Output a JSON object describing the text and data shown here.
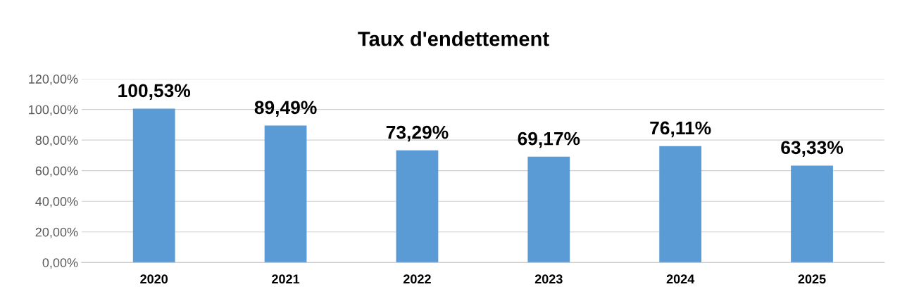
{
  "chart_data": {
    "type": "bar",
    "title": "Taux d'endettement",
    "categories": [
      "2020",
      "2021",
      "2022",
      "2023",
      "2024",
      "2025"
    ],
    "values": [
      100.53,
      89.49,
      73.29,
      69.17,
      76.11,
      63.33
    ],
    "value_labels": [
      "100,53%",
      "89,49%",
      "73,29%",
      "69,17%",
      "76,11%",
      "63,33%"
    ],
    "color": "#5b9bd5",
    "ylim": [
      0,
      120
    ],
    "yticks": [
      {
        "value": 0,
        "label": "0,00%"
      },
      {
        "value": 20,
        "label": "20,00%"
      },
      {
        "value": 40,
        "label": "40,00%"
      },
      {
        "value": 60,
        "label": "60,00%"
      },
      {
        "value": 80,
        "label": "80,00%"
      },
      {
        "value": 100,
        "label": "100,00%"
      },
      {
        "value": 120,
        "label": "120,00%"
      }
    ],
    "grid": "y"
  }
}
